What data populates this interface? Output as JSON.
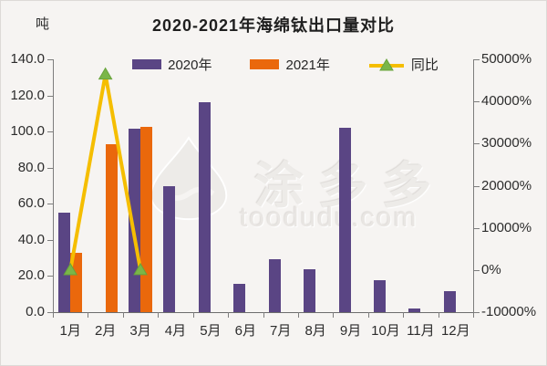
{
  "title": "2020-2021年海绵钛出口量对比",
  "watermark": {
    "brand_cn": "涂多多",
    "domain": "toodudu.com"
  },
  "legend": [
    {
      "label": "2020年",
      "color": "#5a4584",
      "marker": "bar-swatch"
    },
    {
      "label": "2021年",
      "color": "#ea680c",
      "marker": "bar-swatch"
    },
    {
      "label": "同比",
      "line_color": "#f5be00",
      "marker_color": "#7ab648",
      "marker_stroke": "#68a33c",
      "marker": "line-triangle"
    }
  ],
  "chart_data": {
    "type": "bar",
    "title": "2020-2021年海绵钛出口量对比",
    "categories": [
      "1月",
      "2月",
      "3月",
      "4月",
      "5月",
      "6月",
      "7月",
      "8月",
      "9月",
      "10月",
      "11月",
      "12月"
    ],
    "series": [
      {
        "name": "2020年",
        "type": "bar",
        "axis": "left",
        "color": "#5a4584",
        "values": [
          55,
          0.2,
          101.5,
          70,
          116.3,
          15.7,
          29.5,
          23.6,
          102.3,
          17.8,
          1.8,
          11.5
        ]
      },
      {
        "name": "2021年",
        "type": "bar",
        "axis": "left",
        "color": "#ea680c",
        "values": [
          33,
          93,
          102.8,
          null,
          null,
          null,
          null,
          null,
          null,
          null,
          null,
          null
        ]
      },
      {
        "name": "同比",
        "type": "line",
        "axis": "right",
        "color": "#f5be00",
        "marker": "triangle-up",
        "marker_color": "#7ab648",
        "values": [
          -40,
          46400,
          1.3,
          null,
          null,
          null,
          null,
          null,
          null,
          null,
          null,
          null
        ]
      }
    ],
    "left_axis": {
      "unit": "吨",
      "min": 0,
      "max": 140,
      "ticks": [
        "0.0",
        "20.0",
        "40.0",
        "60.0",
        "80.0",
        "100.0",
        "120.0",
        "140.0"
      ]
    },
    "right_axis": {
      "min": -10000,
      "max": 50000,
      "suffix": "%",
      "ticks": [
        "-10000%",
        "0%",
        "10000%",
        "20000%",
        "30000%",
        "40000%",
        "50000%"
      ]
    },
    "legend_position": "top-center",
    "grid": false
  }
}
